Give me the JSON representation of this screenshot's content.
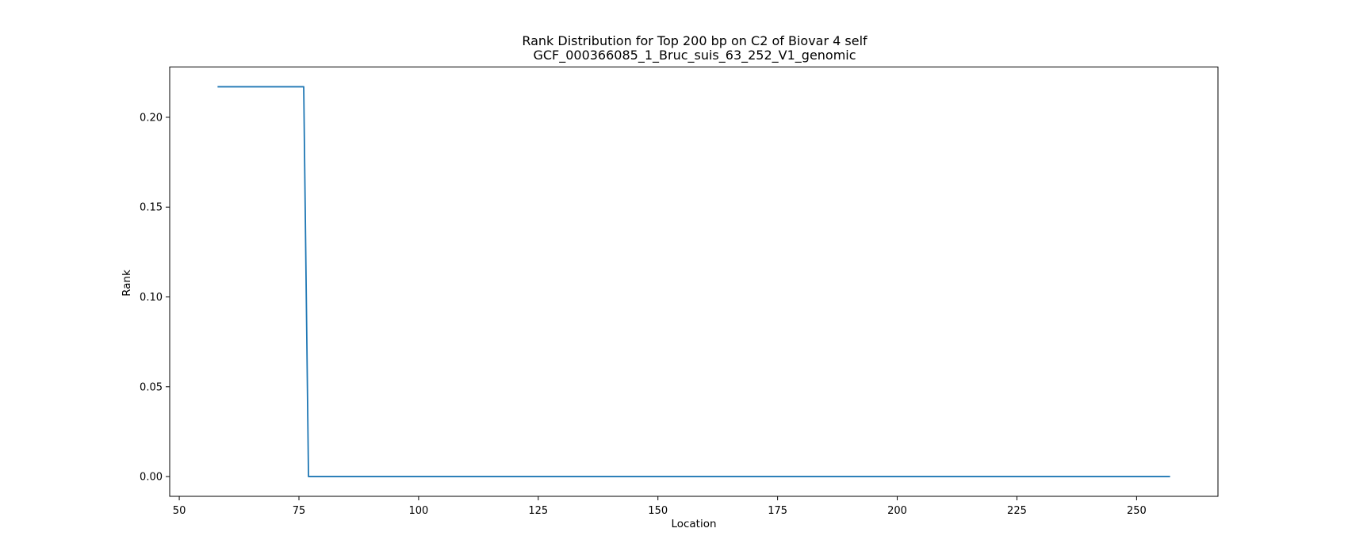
{
  "chart_data": {
    "type": "line",
    "title": "Rank Distribution for Top 200 bp on C2 of Biovar 4 self",
    "subtitle": "GCF_000366085_1_Bruc_suis_63_252_V1_genomic",
    "xlabel": "Location",
    "ylabel": "Rank",
    "xlim": [
      48,
      267
    ],
    "ylim": [
      -0.011,
      0.228
    ],
    "xticks": [
      50,
      75,
      100,
      125,
      150,
      175,
      200,
      225,
      250
    ],
    "yticks": [
      0.0,
      0.05,
      0.1,
      0.15,
      0.2
    ],
    "ytick_labels": [
      "0.00",
      "0.05",
      "0.10",
      "0.15",
      "0.20"
    ],
    "grid": false,
    "series": [
      {
        "color": "#1f77b4",
        "x": [
          58,
          76,
          77,
          257
        ],
        "y": [
          0.217,
          0.217,
          0.0,
          0.0
        ]
      }
    ]
  }
}
